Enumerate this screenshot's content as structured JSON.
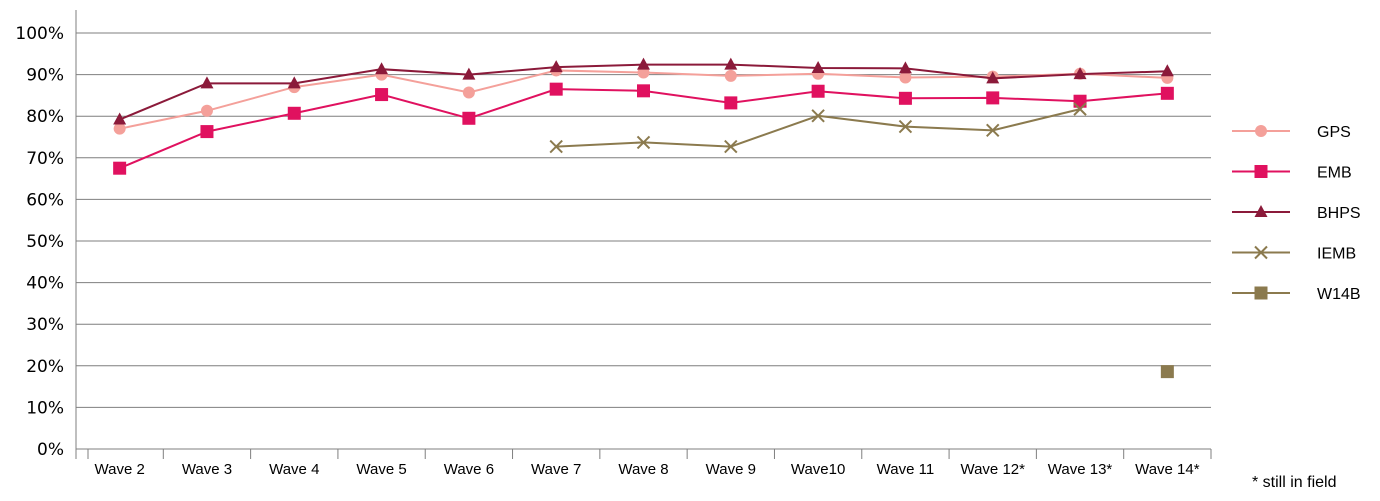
{
  "chart_data": {
    "type": "line",
    "categories": [
      "Wave 2",
      "Wave 3",
      "Wave 4",
      "Wave 5",
      "Wave 6",
      "Wave 7",
      "Wave 8",
      "Wave 9",
      "Wave10",
      "Wave 11",
      "Wave 12*",
      "Wave 13*",
      "Wave 14*"
    ],
    "ylim": [
      0,
      100
    ],
    "y_ticks": [
      "0%",
      "10%",
      "20%",
      "30%",
      "40%",
      "50%",
      "60%",
      "70%",
      "80%",
      "90%",
      "100%"
    ],
    "grid": true,
    "legend_position": "right",
    "series": [
      {
        "name": "GPS",
        "color": "#f4a09a",
        "marker": "circle",
        "values": [
          77,
          81.3,
          87,
          90,
          85.7,
          91,
          90.5,
          89.7,
          90.2,
          89.3,
          89.5,
          90.2,
          89.2
        ]
      },
      {
        "name": "EMB",
        "color": "#e0115f",
        "marker": "square",
        "values": [
          67.5,
          76.3,
          80.7,
          85.2,
          79.5,
          86.5,
          86.1,
          83.2,
          86,
          84.3,
          84.4,
          83.6,
          85.5
        ]
      },
      {
        "name": "BHPS",
        "color": "#8b1a3a",
        "marker": "triangle",
        "values": [
          79.2,
          87.9,
          87.9,
          91.3,
          90,
          91.8,
          92.4,
          92.4,
          91.6,
          91.5,
          89.1,
          90.1,
          90.8
        ]
      },
      {
        "name": "IEMB",
        "color": "#8b7a4e",
        "marker": "x",
        "values": [
          null,
          null,
          null,
          null,
          null,
          72.7,
          73.7,
          72.7,
          80.1,
          77.5,
          76.6,
          81.7,
          null
        ]
      },
      {
        "name": "W14B",
        "color": "#8b7a4e",
        "marker": "square",
        "values": [
          null,
          null,
          null,
          null,
          null,
          null,
          null,
          null,
          null,
          null,
          null,
          null,
          18.6
        ]
      }
    ],
    "footnote": "* still in field"
  }
}
